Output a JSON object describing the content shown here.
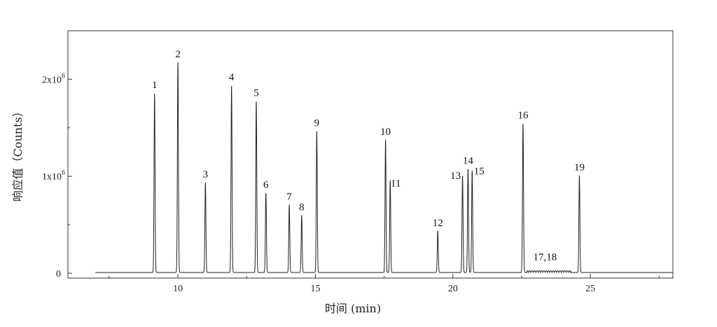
{
  "chart_data": {
    "type": "line",
    "title": "",
    "xlabel": "时间 (min)",
    "ylabel": "响应值（Counts）",
    "xlim": [
      6.0,
      28.0
    ],
    "ylim": [
      -50000,
      2500000
    ],
    "grid": false,
    "x_ticks": [
      {
        "value": 10,
        "label": "10"
      },
      {
        "value": 15,
        "label": "15"
      },
      {
        "value": 20,
        "label": "20"
      },
      {
        "value": 25,
        "label": "25"
      }
    ],
    "y_ticks": [
      {
        "value": 0,
        "label": "0",
        "exp": ""
      },
      {
        "value": 1000000,
        "label": "1x10",
        "exp": "6"
      },
      {
        "value": 2000000,
        "label": "2x10",
        "exp": "6"
      }
    ],
    "peaks": [
      {
        "label": "1",
        "x": 9.15,
        "y": 1850000
      },
      {
        "label": "2",
        "x": 10.0,
        "y": 2170000
      },
      {
        "label": "3",
        "x": 11.0,
        "y": 930000
      },
      {
        "label": "4",
        "x": 11.95,
        "y": 1930000
      },
      {
        "label": "5",
        "x": 12.85,
        "y": 1770000
      },
      {
        "label": "6",
        "x": 13.2,
        "y": 820000
      },
      {
        "label": "7",
        "x": 14.05,
        "y": 700000
      },
      {
        "label": "8",
        "x": 14.5,
        "y": 590000
      },
      {
        "label": "9",
        "x": 15.05,
        "y": 1460000
      },
      {
        "label": "10",
        "x": 17.55,
        "y": 1370000
      },
      {
        "label": "11",
        "x": 17.72,
        "y": 950000
      },
      {
        "label": "12",
        "x": 19.45,
        "y": 430000
      },
      {
        "label": "13",
        "x": 20.35,
        "y": 1000000
      },
      {
        "label": "14",
        "x": 20.55,
        "y": 1070000
      },
      {
        "label": "15",
        "x": 20.7,
        "y": 1050000
      },
      {
        "label": "16",
        "x": 22.55,
        "y": 1540000
      },
      {
        "label": "19",
        "x": 24.6,
        "y": 1000000
      }
    ],
    "annotations": [
      {
        "label": "17,18",
        "x": 23.35,
        "y": 60000
      }
    ]
  }
}
